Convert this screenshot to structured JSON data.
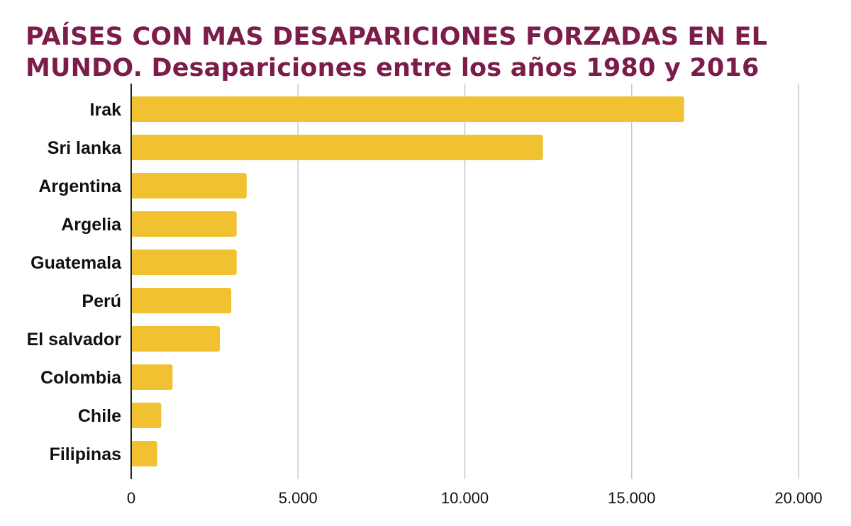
{
  "chart_data": {
    "type": "bar",
    "orientation": "horizontal",
    "title": "PAÍSES CON MAS DESAPARICIONES FORZADAS EN EL MUNDO. Desapariciones entre los años 1980 y 2016",
    "xlabel": "",
    "ylabel": "",
    "categories": [
      "Irak",
      "Sri lanka",
      "Argentina",
      "Argelia",
      "Guatemala",
      "Perú",
      "El salvador",
      "Colombia",
      "Chile",
      "Filipinas"
    ],
    "values": [
      16570,
      12340,
      3460,
      3160,
      3160,
      3000,
      2660,
      1240,
      900,
      780
    ],
    "xlim": [
      0,
      20000
    ],
    "ticks": [
      0,
      5000,
      10000,
      15000,
      20000
    ],
    "tick_labels": [
      "0",
      "5.000",
      "10.000",
      "15.000",
      "20.000"
    ],
    "grid": true,
    "legend": "none",
    "bar_color": "#f0c232",
    "title_color": "#7b1c4a"
  }
}
